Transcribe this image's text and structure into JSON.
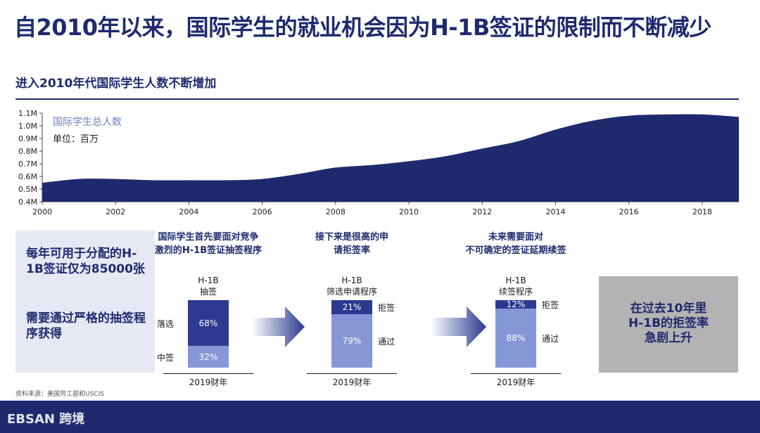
{
  "header": {
    "title": "自2010年以来，国际学生的就业机会因为H-1B签证的限制而不断减少",
    "subtitle": "进入2010年代国际学生人数不断增加"
  },
  "colors": {
    "navy": "#1f2a6e",
    "bar_dark": "#2b3990",
    "bar_light": "#8597d6",
    "callout_bg": "#e6e8f4",
    "callout_gray": "#b3b3b3"
  },
  "chart_data": {
    "type": "area",
    "series": [
      {
        "name": "国际学生总人数",
        "x": [
          2000,
          2001,
          2002,
          2003,
          2004,
          2005,
          2006,
          2007,
          2008,
          2009,
          2010,
          2011,
          2012,
          2013,
          2014,
          2015,
          2016,
          2017,
          2018,
          2019
        ],
        "values": [
          0.55,
          0.58,
          0.58,
          0.57,
          0.57,
          0.57,
          0.58,
          0.62,
          0.67,
          0.69,
          0.72,
          0.76,
          0.82,
          0.88,
          0.97,
          1.04,
          1.08,
          1.09,
          1.09,
          1.07
        ]
      }
    ],
    "unit_label": "单位：百万",
    "y_ticks": [
      "0.4M",
      "0.5M",
      "0.6M",
      "0.7M",
      "0.8M",
      "0.9M",
      "1.0M",
      "1.1M"
    ],
    "x_ticks": [
      "2000",
      "2002",
      "2004",
      "2006",
      "2008",
      "2010",
      "2012",
      "2014",
      "2016",
      "2018"
    ],
    "ylim": [
      0.4,
      1.1
    ],
    "xlim": [
      2000,
      2019
    ]
  },
  "left_callout": {
    "line1": "每年可用于分配的H-1B签证仅为85000张",
    "line2": "需要通过严格的抽签程序获得"
  },
  "stages": [
    {
      "header": [
        "国际学生首先要面对竞争",
        "激烈的H-1B签证抽签程序"
      ],
      "bar_title": [
        "H-1B",
        "抽签"
      ],
      "top_pct": 68,
      "bottom_pct": 32,
      "top_text": "68%",
      "bottom_text": "32%",
      "top_label": "落选",
      "bottom_label": "中签",
      "fiscal": "2019财年"
    },
    {
      "header": [
        "接下来是很高的申",
        "请拒签率"
      ],
      "bar_title": [
        "H-1B",
        "筛选申请程序"
      ],
      "top_pct": 21,
      "bottom_pct": 79,
      "top_text": "21%",
      "bottom_text": "79%",
      "top_label": "拒签",
      "bottom_label": "通过",
      "fiscal": "2019财年"
    },
    {
      "header": [
        "未来需要面对",
        "不可确定的签证延期续签"
      ],
      "bar_title": [
        "H-1B",
        "续签程序"
      ],
      "top_pct": 12,
      "bottom_pct": 88,
      "top_text": "12%",
      "bottom_text": "88%",
      "top_label": "拒签",
      "bottom_label": "通过",
      "fiscal": "2019财年"
    }
  ],
  "right_callout": {
    "line1": "在过去10年里",
    "line2": "H-1B的拒签率",
    "line3": "急剧上升"
  },
  "source": "资料来源：美国劳工部和USCIS",
  "footer": {
    "brand": "EBSAN 跨境"
  }
}
